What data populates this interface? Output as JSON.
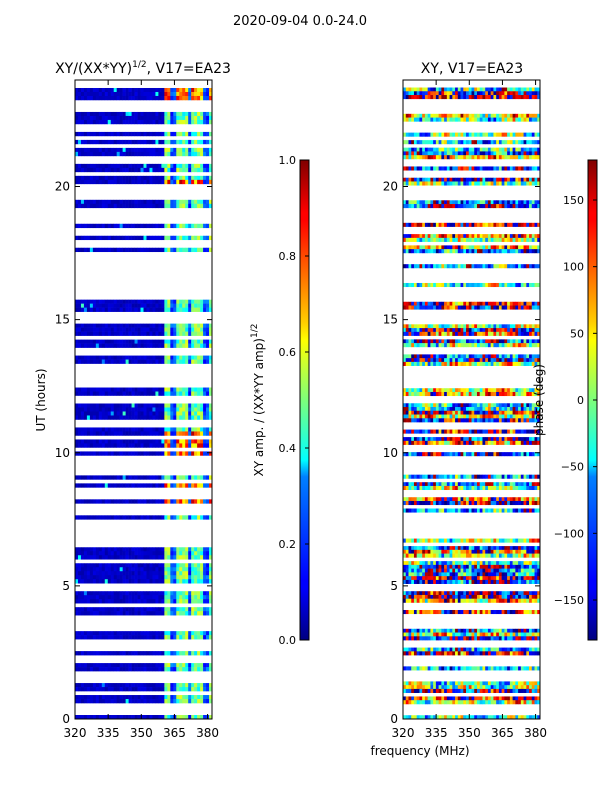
{
  "figure": {
    "suptitle": "2020-09-04 0.0-24.0",
    "common_xlabel": "frequency (MHz)"
  },
  "chart_data": [
    {
      "type": "heatmap",
      "title": "XY/(XX*YY)^{1/2}, V17=EA23",
      "title_main": "XY/(XX*YY)",
      "title_sup": "1/2",
      "title_rest": ", V17=EA23",
      "xlabel": "",
      "ylabel": "UT (hours)",
      "xlim": [
        320,
        382
      ],
      "ylim": [
        0,
        24
      ],
      "x_ticks": [
        320,
        335,
        350,
        365,
        380
      ],
      "y_ticks": [
        0,
        5,
        10,
        15,
        20
      ],
      "colormap": "jet",
      "colorbar": {
        "label_main": "XY amp. / (XX*YY amp)",
        "label_sup": "1/2",
        "range": [
          0.0,
          1.0
        ],
        "ticks": [
          "0.0",
          "0.2",
          "0.4",
          "0.6",
          "0.8",
          "1.0"
        ],
        "tick_values": [
          0.0,
          0.2,
          0.4,
          0.6,
          0.8,
          1.0
        ]
      }
    },
    {
      "type": "heatmap",
      "title": "XY, V17=EA23",
      "xlabel": "frequency (MHz)",
      "ylabel": "",
      "xlim": [
        320,
        382
      ],
      "ylim": [
        0,
        24
      ],
      "x_ticks": [
        320,
        335,
        350,
        365,
        380
      ],
      "y_ticks": [
        0,
        5,
        10,
        15,
        20
      ],
      "colormap": "jet",
      "colorbar": {
        "label": "phase (deg)",
        "range": [
          -180,
          180
        ],
        "ticks": [
          "−150",
          "−100",
          "−50",
          "0",
          "50",
          "100",
          "150"
        ],
        "tick_values": [
          -150,
          -100,
          -50,
          0,
          50,
          100,
          150
        ]
      }
    }
  ]
}
